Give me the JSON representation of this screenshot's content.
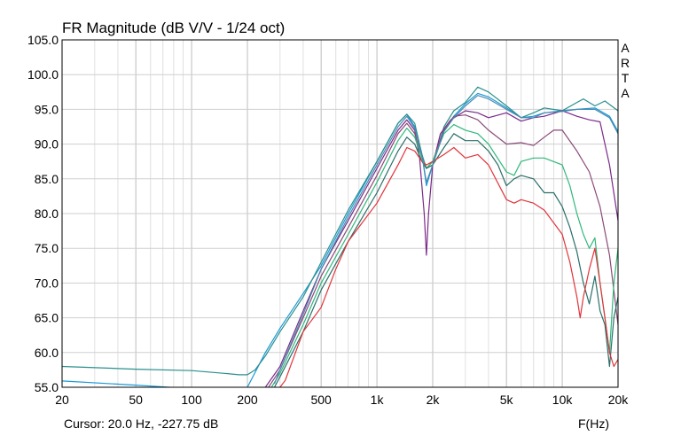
{
  "chart_data": {
    "type": "line",
    "title": "FR Magnitude (dB V/V - 1/24 oct)",
    "xlabel": "F(Hz)",
    "ylabel": "",
    "xscale": "log",
    "xlim": [
      20,
      20000
    ],
    "ylim": [
      55,
      105
    ],
    "grid": true,
    "brand_label": [
      "A",
      "R",
      "T",
      "A"
    ],
    "cursor_text": "Cursor: 20.0 Hz, -227.75 dB",
    "y_ticks": [
      {
        "v": 55,
        "label": "55.0"
      },
      {
        "v": 60,
        "label": "60.0"
      },
      {
        "v": 65,
        "label": "65.0"
      },
      {
        "v": 70,
        "label": "70.0"
      },
      {
        "v": 75,
        "label": "75.0"
      },
      {
        "v": 80,
        "label": "80.0"
      },
      {
        "v": 85,
        "label": "85.0"
      },
      {
        "v": 90,
        "label": "90.0"
      },
      {
        "v": 95,
        "label": "95.0"
      },
      {
        "v": 100,
        "label": "100.0"
      },
      {
        "v": 105,
        "label": "105.0"
      }
    ],
    "x_ticks": [
      {
        "v": 20,
        "label": "20"
      },
      {
        "v": 50,
        "label": "50"
      },
      {
        "v": 100,
        "label": "100"
      },
      {
        "v": 200,
        "label": "200"
      },
      {
        "v": 500,
        "label": "500"
      },
      {
        "v": 1000,
        "label": "1k"
      },
      {
        "v": 2000,
        "label": "2k"
      },
      {
        "v": 5000,
        "label": "5k"
      },
      {
        "v": 10000,
        "label": "10k"
      },
      {
        "v": 20000,
        "label": "20k"
      }
    ],
    "series": [
      {
        "color": "#1a9ad8",
        "x": [
          20,
          50,
          100,
          150,
          180,
          200,
          250,
          300,
          400,
          500,
          700,
          1000,
          1300,
          1450,
          1600,
          1750,
          1850,
          2000,
          2300,
          2600,
          3000,
          3500,
          4000,
          5000,
          6000,
          7000,
          8000,
          10000,
          12000,
          15000,
          18000,
          20000
        ],
        "y": [
          55.9,
          55.3,
          54.8,
          54.4,
          54.2,
          55,
          60,
          63.5,
          68.5,
          72.5,
          80,
          87.5,
          93,
          94.3,
          92.5,
          88.5,
          84,
          87,
          92,
          94,
          95.8,
          97.3,
          96.8,
          95.2,
          93.8,
          94,
          94.5,
          94.8,
          95,
          95.2,
          94,
          91.8
        ]
      },
      {
        "color": "#2a8f8c",
        "x": [
          20,
          50,
          100,
          150,
          180,
          200,
          220,
          250,
          300,
          400,
          500,
          700,
          1000,
          1300,
          1450,
          1600,
          1750,
          1850,
          2000,
          2300,
          2600,
          3000,
          3500,
          4000,
          5000,
          6000,
          7000,
          8000,
          10000,
          12000,
          13000,
          15000,
          17000,
          20000
        ],
        "y": [
          58,
          57.6,
          57.4,
          57,
          56.8,
          56.8,
          57.5,
          59.5,
          63,
          68,
          73,
          80.5,
          87.5,
          93,
          94.3,
          93,
          88.5,
          86.5,
          87,
          92.5,
          94.8,
          96,
          98.2,
          97.5,
          95.5,
          93.8,
          94.5,
          95.2,
          94.8,
          96,
          96.5,
          95.5,
          96.2,
          94.8
        ]
      },
      {
        "color": "#7a2a8a",
        "x": [
          250,
          300,
          400,
          500,
          700,
          1000,
          1300,
          1450,
          1600,
          1700,
          1800,
          1850,
          1900,
          2000,
          2200,
          2500,
          3000,
          3500,
          4000,
          5000,
          6000,
          7000,
          8000,
          10000,
          12000,
          14000,
          16000,
          18000,
          20000
        ],
        "y": [
          55,
          58,
          66,
          72,
          79,
          86.5,
          92,
          93.5,
          92,
          88,
          80,
          74,
          80,
          87,
          91.5,
          93.5,
          94.8,
          94.5,
          93.8,
          94.5,
          93.3,
          93.8,
          94,
          94.8,
          94,
          93.5,
          93.2,
          87,
          79
        ]
      },
      {
        "color": "#8a4a7a",
        "x": [
          260,
          300,
          400,
          500,
          700,
          1000,
          1300,
          1450,
          1600,
          1750,
          1850,
          2000,
          2300,
          2600,
          3000,
          3500,
          4000,
          5000,
          6000,
          7000,
          8000,
          9000,
          10000,
          12000,
          14000,
          16000,
          18000,
          20000
        ],
        "y": [
          55,
          57.5,
          65,
          71,
          78,
          85.5,
          91.5,
          93,
          91.5,
          88,
          86.5,
          87.5,
          92,
          94,
          94.2,
          93.5,
          92,
          90,
          90.2,
          89.8,
          91,
          92,
          92,
          89,
          86,
          81,
          74,
          64
        ]
      },
      {
        "color": "#2fb87a",
        "x": [
          270,
          300,
          400,
          500,
          700,
          1000,
          1300,
          1450,
          1600,
          1750,
          1850,
          2000,
          2300,
          2600,
          3000,
          3500,
          4000,
          5000,
          5500,
          6000,
          7000,
          8000,
          10000,
          11000,
          12000,
          13000,
          14000,
          15000,
          16000,
          17000,
          18000,
          19000,
          20000
        ],
        "y": [
          55,
          57,
          64,
          70,
          77,
          84.5,
          90.5,
          92.3,
          91,
          88,
          86.5,
          87.5,
          91.5,
          92.8,
          92,
          91.5,
          90,
          86,
          85.5,
          87.5,
          88,
          88,
          87,
          84,
          80,
          77,
          75,
          76.5,
          70,
          65,
          60,
          70,
          75
        ]
      },
      {
        "color": "#2a6f6a",
        "x": [
          280,
          300,
          400,
          500,
          700,
          1000,
          1300,
          1450,
          1600,
          1750,
          1850,
          2000,
          2300,
          2600,
          3000,
          3500,
          4000,
          4500,
          5000,
          5500,
          6000,
          7000,
          8000,
          9000,
          10000,
          11000,
          12000,
          13000,
          14000,
          15000,
          16000,
          17000,
          18000,
          19000,
          20000
        ],
        "y": [
          55,
          56.5,
          63,
          69,
          76,
          83,
          89,
          91,
          90,
          87.5,
          86.5,
          87,
          89.5,
          91.5,
          90.5,
          90.5,
          89,
          87,
          84,
          85,
          85.5,
          85,
          83,
          83,
          81,
          78,
          74.5,
          70,
          67,
          71,
          66,
          64,
          58,
          65,
          68
        ]
      },
      {
        "color": "#e2333a",
        "x": [
          300,
          320,
          400,
          500,
          600,
          700,
          1000,
          1300,
          1450,
          1600,
          1750,
          1850,
          2000,
          2300,
          2600,
          3000,
          3500,
          4000,
          5000,
          5500,
          6000,
          7000,
          8000,
          10000,
          11000,
          12000,
          12500,
          13000,
          14000,
          15000,
          16000,
          17000,
          18000,
          19000,
          20000
        ],
        "y": [
          55,
          56,
          63,
          66.5,
          72,
          76,
          81.5,
          87,
          89.5,
          89,
          87.5,
          87,
          87.5,
          88.5,
          89.5,
          88,
          88.5,
          87,
          82,
          81.5,
          82,
          81.5,
          80.5,
          77,
          73,
          68,
          65,
          68,
          72,
          75,
          70,
          65,
          60,
          58,
          59
        ]
      },
      {
        "color": "#4a8ab0",
        "x": [
          280,
          300,
          400,
          500,
          700,
          1000,
          1300,
          1450,
          1600,
          1750,
          1850,
          2000,
          2300,
          2600,
          3000,
          3500,
          4000,
          5000,
          6000,
          7000,
          8000,
          10000,
          12000,
          15000,
          18000,
          20000
        ],
        "y": [
          55.5,
          57.5,
          65.5,
          72,
          79.5,
          87,
          92.5,
          94,
          92.3,
          88.3,
          84.5,
          87,
          91.8,
          93.8,
          95.5,
          97,
          96.5,
          95,
          93.8,
          93.8,
          94.5,
          94.7,
          95,
          95,
          93.8,
          91.5
        ]
      }
    ]
  }
}
